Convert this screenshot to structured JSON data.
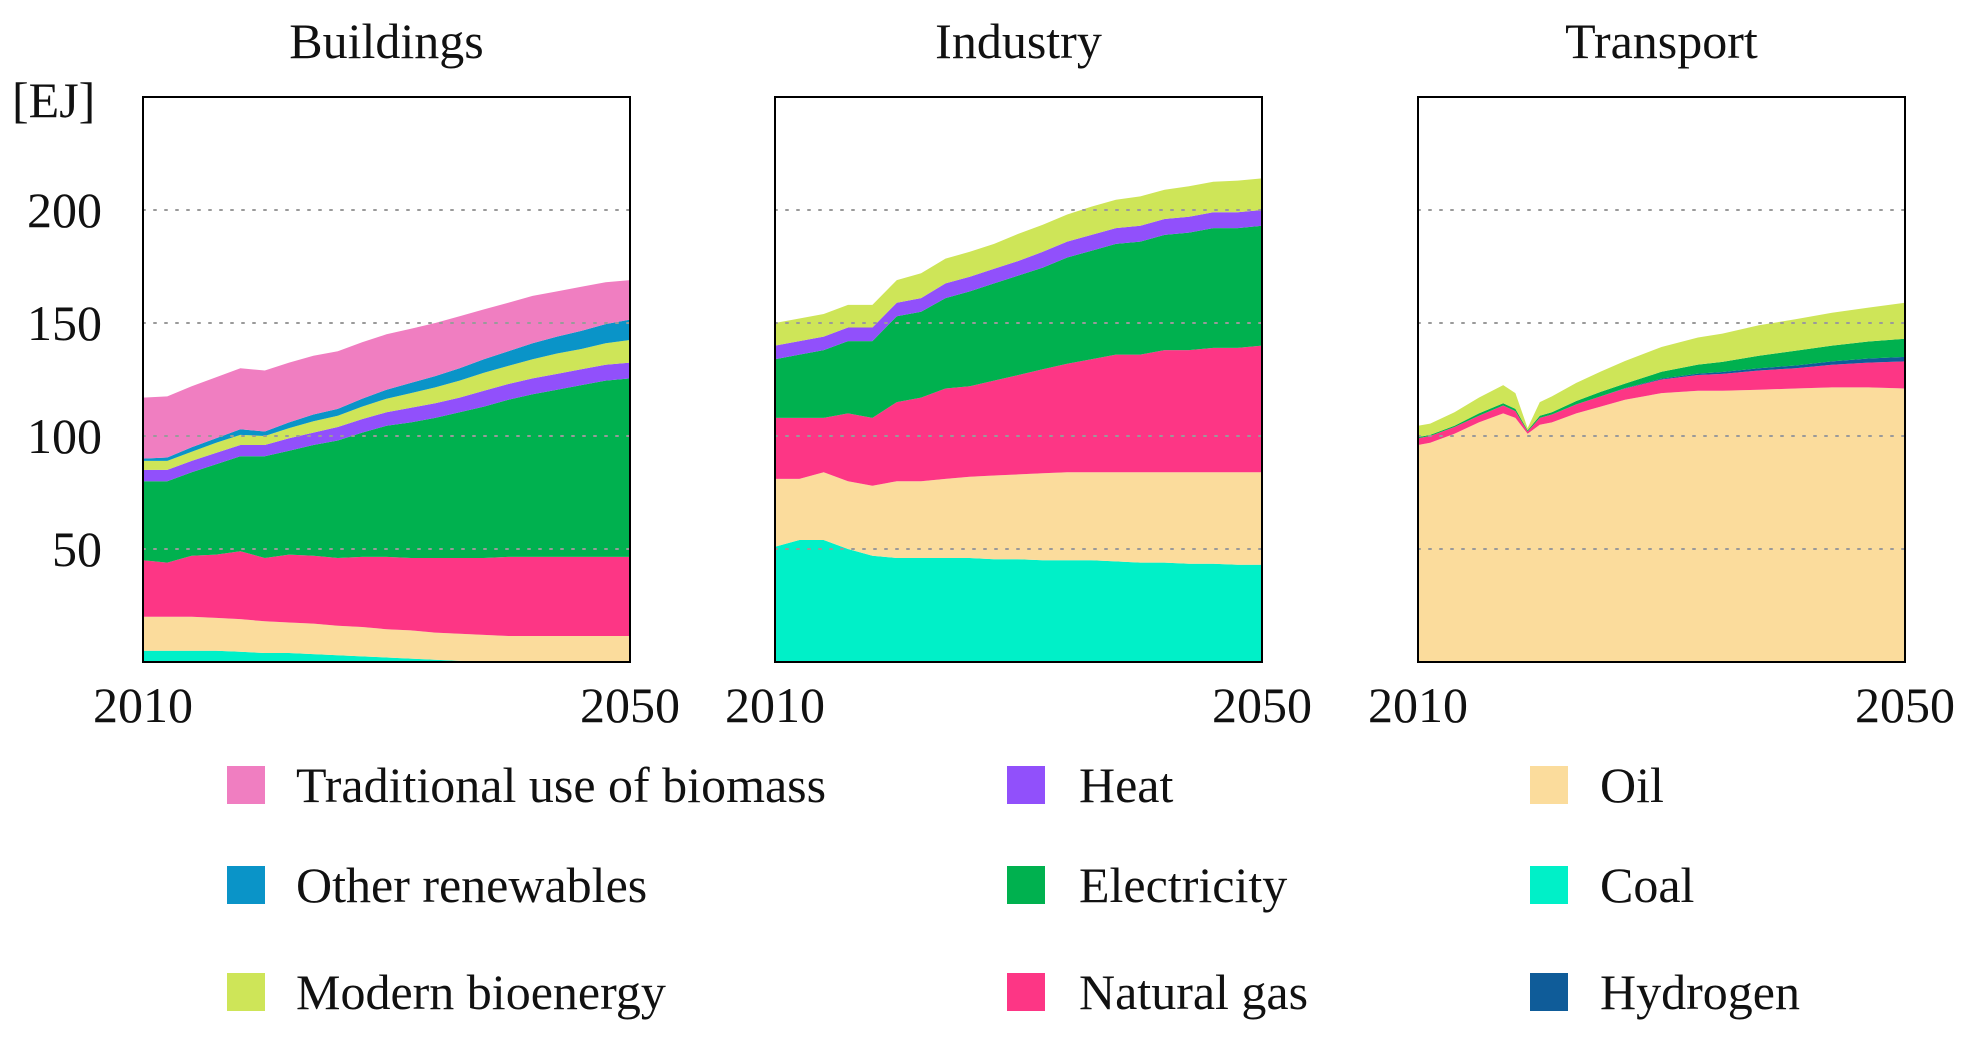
{
  "chart_data": {
    "type": "area",
    "stacked": true,
    "unit_label": "[EJ]",
    "x_ticks": [
      "2010",
      "2050"
    ],
    "y_ticks": [
      50,
      100,
      150,
      200
    ],
    "ylim": [
      0,
      250
    ],
    "xlim": [
      2010,
      2050
    ],
    "grid": "dotted-horizontal",
    "colors": {
      "Coal": "#00f0c8",
      "Oil": "#fbdc9c",
      "Natural gas": "#fd3685",
      "Electricity": "#00b14f",
      "Heat": "#9150fb",
      "Modern bioenergy": "#cee558",
      "Other renewables": "#0a94c8",
      "Traditional use of biomass": "#f07ec1",
      "Hydrogen": "#0f5c99"
    },
    "legend": [
      [
        "Traditional use of biomass",
        "Other renewables",
        "Modern bioenergy"
      ],
      [
        "Heat",
        "Electricity",
        "Natural gas"
      ],
      [
        "Oil",
        "Coal",
        "Hydrogen"
      ]
    ],
    "panels": [
      {
        "title": "Buildings",
        "x": [
          2010,
          2012,
          2014,
          2016,
          2018,
          2020,
          2022,
          2024,
          2026,
          2028,
          2030,
          2032,
          2034,
          2036,
          2038,
          2040,
          2042,
          2044,
          2046,
          2048,
          2050
        ],
        "series": [
          {
            "name": "Coal",
            "values": [
              5,
              5,
              5,
              5,
              4.5,
              4,
              4,
              3.5,
              3,
              2.5,
              2,
              1.5,
              1,
              0.5,
              0,
              0,
              0,
              0,
              0,
              0,
              0
            ]
          },
          {
            "name": "Oil",
            "values": [
              15,
              15,
              15,
              14.5,
              14.5,
              14,
              13.5,
              13.5,
              13,
              13,
              12.5,
              12.5,
              12,
              12,
              12,
              11.5,
              11.5,
              11.5,
              11.5,
              11.5,
              11.5
            ]
          },
          {
            "name": "Natural gas",
            "values": [
              25,
              24,
              27,
              28,
              30,
              28,
              30,
              30,
              30,
              31,
              32,
              32,
              33,
              33.5,
              34,
              35,
              35,
              35,
              35,
              35,
              35
            ]
          },
          {
            "name": "Electricity",
            "values": [
              35,
              36,
              37,
              40,
              42,
              45,
              46,
              49,
              52,
              55,
              58,
              60,
              62,
              64.5,
              67,
              69.5,
              72,
              74,
              76,
              78,
              79
            ]
          },
          {
            "name": "Heat",
            "values": [
              5,
              5,
              5,
              5,
              5,
              5,
              5.5,
              5.5,
              6,
              6,
              6,
              6.5,
              6.5,
              6.5,
              7,
              7,
              7,
              7,
              7,
              7,
              7
            ]
          },
          {
            "name": "Modern bioenergy",
            "values": [
              4,
              4,
              4,
              4.5,
              4.5,
              4,
              4.5,
              5,
              5,
              5.5,
              6,
              6.5,
              7,
              7.5,
              8,
              8,
              8.5,
              9,
              9,
              9.5,
              10
            ]
          },
          {
            "name": "Other renewables",
            "values": [
              1,
              1.5,
              2,
              2,
              2.5,
              2,
              2.5,
              3,
              3,
              3.5,
              4,
              4.5,
              5,
              5.5,
              6,
              6.5,
              7,
              7.5,
              8,
              8.5,
              9
            ]
          },
          {
            "name": "Traditional use of biomass",
            "values": [
              27,
              27,
              27,
              27,
              27,
              27,
              26.5,
              26,
              25.5,
              25,
              24.5,
              24,
              23.5,
              23,
              22,
              21.5,
              21,
              20,
              19.5,
              18.5,
              17.5
            ]
          }
        ]
      },
      {
        "title": "Industry",
        "x": [
          2010,
          2012,
          2014,
          2016,
          2018,
          2020,
          2022,
          2024,
          2026,
          2028,
          2030,
          2032,
          2034,
          2036,
          2038,
          2040,
          2042,
          2044,
          2046,
          2048,
          2050
        ],
        "series": [
          {
            "name": "Coal",
            "values": [
              51,
              54,
              54,
              50,
              47,
              46,
              46,
              46,
              46,
              45.5,
              45.5,
              45,
              45,
              45,
              44.5,
              44,
              44,
              43.5,
              43.5,
              43,
              43
            ]
          },
          {
            "name": "Oil",
            "values": [
              30,
              27,
              30,
              30,
              31,
              34,
              34,
              35,
              36,
              37,
              37.5,
              38.5,
              39,
              39,
              39.5,
              40,
              40,
              40.5,
              40.5,
              41,
              41
            ]
          },
          {
            "name": "Natural gas",
            "values": [
              27,
              27,
              24,
              30,
              30,
              35,
              37,
              40,
              40,
              42,
              44,
              46,
              48,
              50,
              52,
              52,
              54,
              54,
              55,
              55,
              56
            ]
          },
          {
            "name": "Electricity",
            "values": [
              26,
              28,
              30,
              32,
              34,
              38,
              38,
              40,
              42,
              43,
              44,
              45,
              47,
              48,
              49,
              50,
              51,
              52,
              53,
              53,
              53
            ]
          },
          {
            "name": "Heat",
            "values": [
              6,
              6,
              6,
              6,
              6,
              6,
              6,
              6.5,
              6.5,
              6.5,
              6.5,
              7,
              7,
              7,
              7,
              7,
              7,
              7,
              7,
              7,
              7
            ]
          },
          {
            "name": "Modern bioenergy",
            "values": [
              10,
              10,
              10,
              10,
              10,
              10,
              11,
              11,
              11,
              11,
              12,
              12,
              12,
              12.5,
              12.5,
              13,
              13,
              13.5,
              13.5,
              14,
              14
            ]
          },
          {
            "name": "Other renewables",
            "values": [
              0,
              0,
              0,
              0,
              0,
              0,
              0,
              0,
              0,
              0,
              0,
              0,
              0,
              0,
              0,
              0,
              0,
              0,
              0,
              0,
              0
            ]
          },
          {
            "name": "Traditional use of biomass",
            "values": [
              0,
              0,
              0,
              0,
              0,
              0,
              0,
              0,
              0,
              0,
              0,
              0,
              0,
              0,
              0,
              0,
              0,
              0,
              0,
              0,
              0
            ]
          }
        ]
      },
      {
        "title": "Transport",
        "x": [
          2010,
          2011,
          2013,
          2015,
          2017,
          2018,
          2019,
          2020,
          2021,
          2023,
          2025,
          2027,
          2030,
          2033,
          2035,
          2038,
          2041,
          2044,
          2047,
          2050
        ],
        "series": [
          {
            "name": "Oil",
            "values": [
              96,
              97,
              101,
              106,
              110,
              108,
              101,
              105,
              106,
              110,
              113,
              116,
              119,
              120,
              120,
              120.5,
              121,
              121.5,
              121.5,
              121
            ]
          },
          {
            "name": "Natural gas",
            "values": [
              3,
              3,
              3,
              3,
              3.5,
              3,
              1,
              3,
              3.5,
              4,
              4.5,
              5,
              6,
              7,
              7.5,
              8.5,
              9,
              10,
              11,
              12
            ]
          },
          {
            "name": "Hydrogen",
            "values": [
              0,
              0,
              0,
              0,
              0,
              0,
              0,
              0,
              0,
              0,
              0,
              0.2,
              0.4,
              0.6,
              0.8,
              1,
              1.2,
              1.5,
              1.8,
              2
            ]
          },
          {
            "name": "Electricity",
            "values": [
              0.5,
              0.5,
              0.5,
              1,
              1,
              1,
              0.5,
              1,
              1,
              1.5,
              2,
              2,
              3,
              4,
              4.5,
              5.5,
              6.5,
              7,
              7.5,
              8
            ]
          },
          {
            "name": "Modern bioenergy",
            "values": [
              5,
              5,
              6,
              7,
              8,
              7,
              1,
              6,
              7,
              8,
              9,
              10,
              11,
              12,
              12.5,
              13.5,
              14,
              14.5,
              15,
              16
            ]
          }
        ]
      }
    ]
  }
}
